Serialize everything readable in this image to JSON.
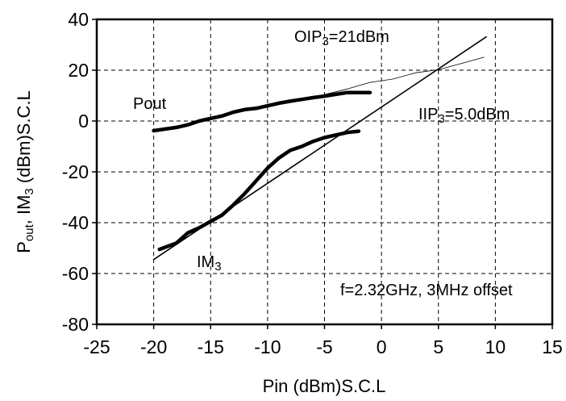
{
  "chart_data": {
    "type": "line",
    "title": "",
    "xlabel": "Pin (dBm)S.C.L",
    "ylabel_main": "P",
    "ylabel_sub1": "out",
    "ylabel_mid": ", IM",
    "ylabel_sub2": "3",
    "ylabel_tail": " (dBm)S.C.L",
    "xlim": [
      -25,
      15
    ],
    "ylim": [
      -80,
      40
    ],
    "x_ticks": [
      -25,
      -20,
      -15,
      -10,
      -5,
      0,
      5,
      10,
      15
    ],
    "y_ticks": [
      -80,
      -60,
      -40,
      -20,
      0,
      20,
      40
    ],
    "grid": true,
    "series": [
      {
        "name": "Pout",
        "style": "thick",
        "x": [
          -20,
          -18,
          -17,
          -16,
          -15,
          -14,
          -13,
          -12,
          -11,
          -10,
          -9,
          -8,
          -7,
          -6,
          -5,
          -4,
          -3,
          -2,
          -1
        ],
        "y": [
          -3.8,
          -2.5,
          -1.5,
          0,
          1,
          2,
          3.5,
          4.5,
          5,
          6,
          7,
          7.8,
          8.5,
          9.2,
          9.8,
          10.5,
          11.2,
          11.2,
          11.2
        ]
      },
      {
        "name": "IM3",
        "style": "thick",
        "x": [
          -19.5,
          -18,
          -17,
          -16,
          -15,
          -14,
          -13,
          -12,
          -11,
          -10,
          -9,
          -8,
          -7,
          -6,
          -5,
          -4,
          -3,
          -2
        ],
        "y": [
          -50.5,
          -48,
          -44,
          -42,
          -39.5,
          -37,
          -33,
          -28.5,
          -23.5,
          -18.5,
          -14.5,
          -11.5,
          -10,
          -8,
          -6.5,
          -5.5,
          -4.5,
          -4
        ]
      },
      {
        "name": "Pout extrapolation",
        "style": "thin-light",
        "x": [
          -5,
          -3,
          -1,
          1,
          3,
          5,
          7,
          9
        ],
        "y": [
          10.4,
          12.6,
          15.2,
          16.5,
          19,
          20.2,
          22.6,
          25.1
        ]
      },
      {
        "name": "IM3 3:1 line",
        "style": "thin",
        "x": [
          -20,
          9.2
        ],
        "y": [
          -54.5,
          33.1
        ]
      }
    ],
    "annotations": {
      "oip3_prefix": "OIP",
      "oip3_sub": "3",
      "oip3_value": "=21dBm",
      "iip3_prefix": "IIP",
      "iip3_sub": "3",
      "iip3_value": "=5.0dBm",
      "pout_label": "Pout",
      "im3_prefix": "IM",
      "im3_sub": "3",
      "condition": "f=2.32GHz, 3MHz offset"
    }
  }
}
